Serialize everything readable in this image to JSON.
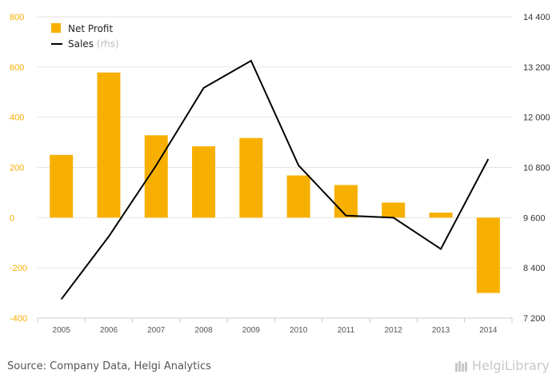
{
  "chart_data": {
    "type": "bar",
    "categories": [
      "2005",
      "2006",
      "2007",
      "2008",
      "2009",
      "2010",
      "2011",
      "2012",
      "2013",
      "2014"
    ],
    "series": [
      {
        "name": "Net Profit",
        "type": "bar",
        "axis": "left",
        "values": [
          250,
          578,
          328,
          284,
          317,
          168,
          130,
          60,
          20,
          -300
        ]
      },
      {
        "name": "Sales",
        "type": "line",
        "axis": "right",
        "name_suffix": "(rhs)",
        "values": [
          7650,
          9150,
          10850,
          12700,
          13350,
          10850,
          9650,
          9600,
          8850,
          11000
        ]
      }
    ],
    "left_axis": {
      "ylim": [
        -400,
        800
      ],
      "ticks": [
        "-400",
        "-200",
        "0",
        "200",
        "400",
        "600",
        "800"
      ]
    },
    "right_axis": {
      "ylim": [
        7200,
        14400
      ],
      "ticks": [
        "7 200",
        "8 400",
        "9 600",
        "10 800",
        "12 000",
        "13 200",
        "14 400"
      ]
    },
    "legend_position": "top-left",
    "grid": true,
    "colors": {
      "bar": "#f7b000",
      "line": "#000000",
      "left_axis_text": "#f7b000",
      "grid": "#e6e6e6"
    }
  },
  "footer": {
    "source": "Source: Company Data, Helgi Analytics",
    "logo_text": "HelgiLibrary"
  }
}
